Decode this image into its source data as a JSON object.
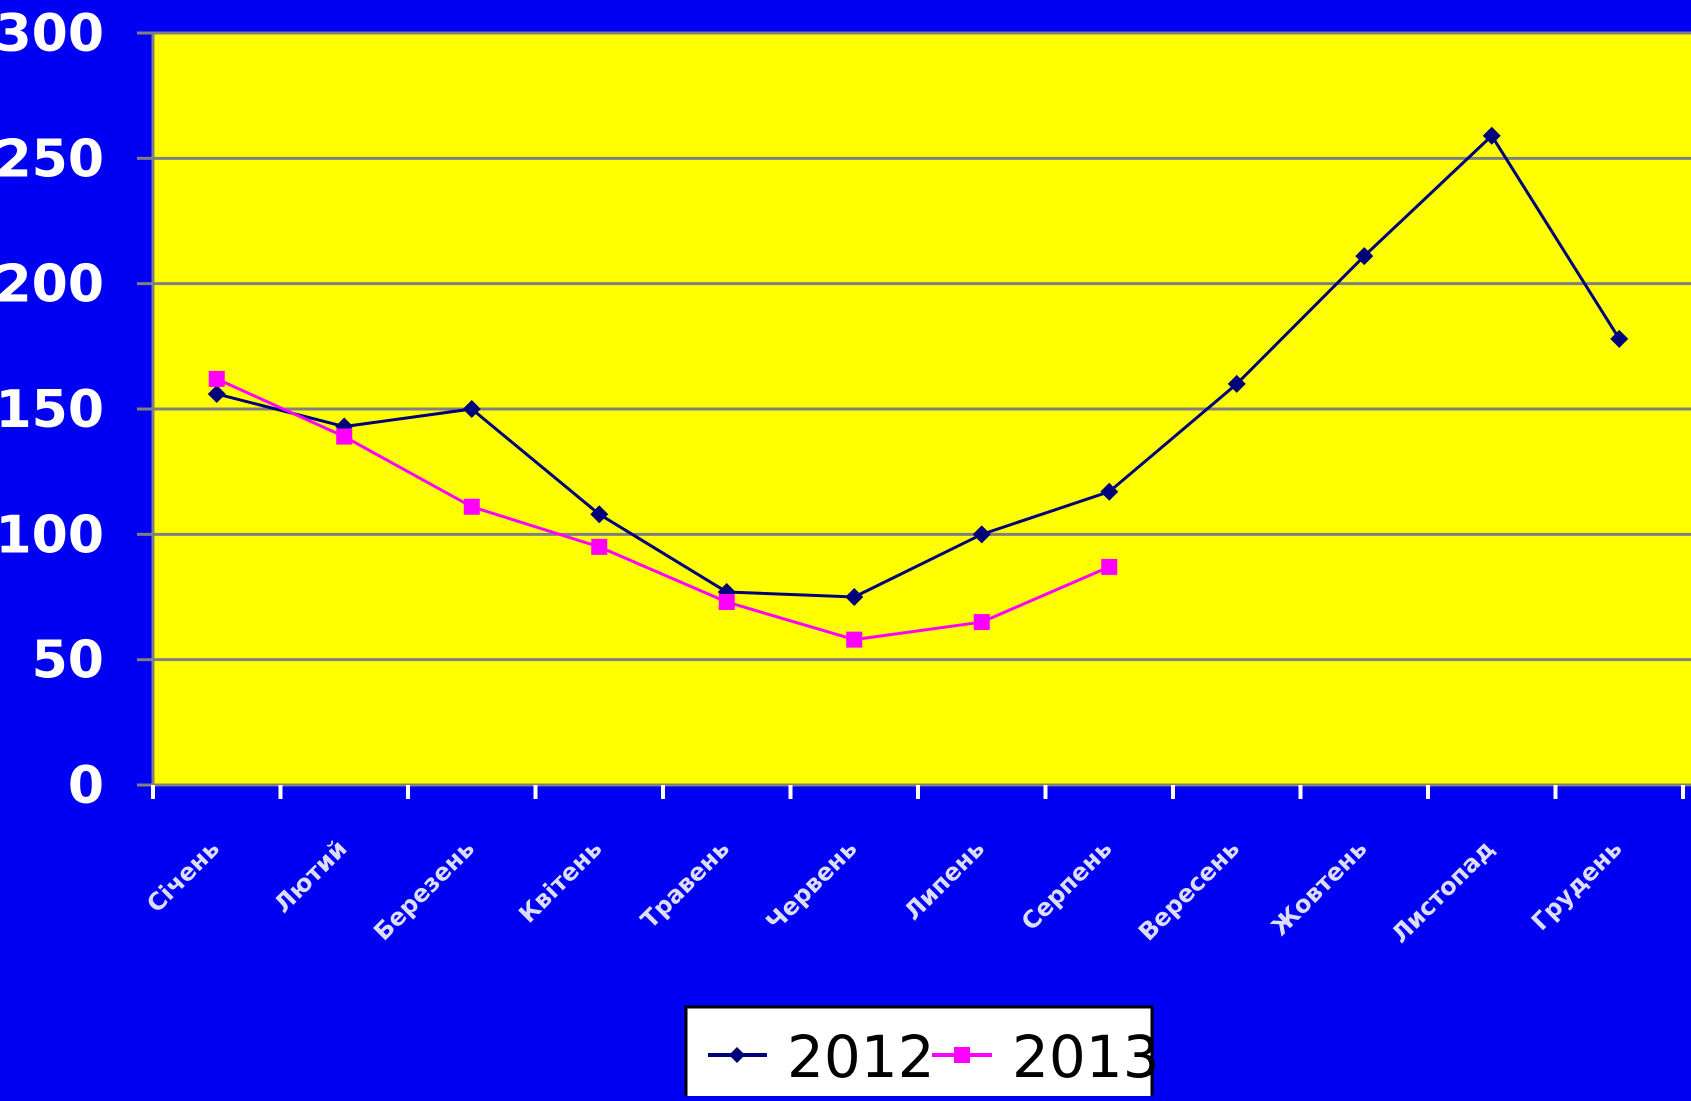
{
  "chart_data": {
    "type": "line",
    "categories": [
      "Січень",
      "Лютий",
      "Березень",
      "Квітень",
      "Травень",
      "Червень",
      "Липень",
      "Серпень",
      "Вересень",
      "Жовтень",
      "Листопад",
      "Грудень"
    ],
    "series": [
      {
        "name": "2012",
        "color": "#00007a",
        "marker": "diamond",
        "values": [
          156,
          143,
          150,
          108,
          77,
          75,
          100,
          117,
          160,
          211,
          259,
          178
        ]
      },
      {
        "name": "2013",
        "color": "#ff00ff",
        "marker": "square",
        "values": [
          162,
          139,
          111,
          95,
          73,
          58,
          65,
          87,
          null,
          null,
          null,
          null
        ]
      }
    ],
    "ylim": [
      0,
      300
    ],
    "yticks": [
      "0",
      "50",
      "100",
      "150",
      "200",
      "250",
      "300"
    ],
    "grid": true,
    "legend_position": "bottom-center",
    "colors": {
      "page_background": "#0000f2",
      "plot_background": "#ffff00",
      "gridline": "#808080",
      "axis_text": "#ffffff",
      "legend_background": "#ffffff",
      "legend_text": "#000000"
    }
  }
}
